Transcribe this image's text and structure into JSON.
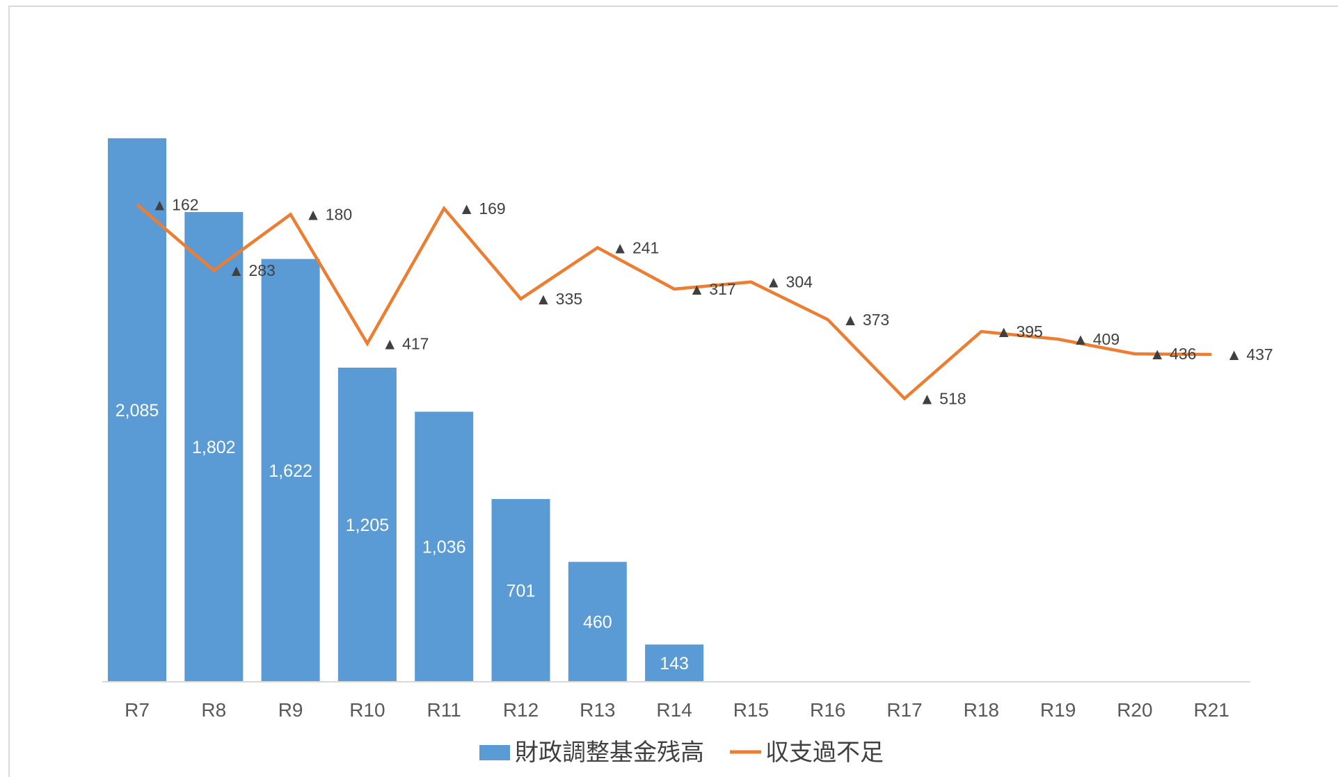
{
  "chart_data": {
    "type": "bar",
    "categories": [
      "R7",
      "R8",
      "R9",
      "R10",
      "R11",
      "R12",
      "R13",
      "R14",
      "R15",
      "R16",
      "R17",
      "R18",
      "R19",
      "R20",
      "R21"
    ],
    "series": [
      {
        "name": "財政調整基金残高",
        "type": "bar",
        "values": [
          2085,
          1802,
          1622,
          1205,
          1036,
          701,
          460,
          143,
          null,
          null,
          null,
          null,
          null,
          null,
          null
        ],
        "labels": [
          "2,085",
          "1,802",
          "1,622",
          "1,205",
          "1,036",
          "701",
          "460",
          "143",
          "",
          "",
          "",
          "",
          "",
          "",
          ""
        ],
        "color": "#5b9bd5"
      },
      {
        "name": "収支過不足",
        "type": "line",
        "values": [
          -162,
          -283,
          -180,
          -417,
          -169,
          -335,
          -241,
          -317,
          -304,
          -373,
          -518,
          -395,
          -409,
          -436,
          -437
        ],
        "labels": [
          "▲ 162",
          "▲ 283",
          "▲ 180",
          "▲ 417",
          "▲ 169",
          "▲ 335",
          "▲ 241",
          "▲ 317",
          "▲ 304",
          "▲ 373",
          "▲ 518",
          "▲ 395",
          "▲ 409",
          "▲ 436",
          "▲ 437"
        ],
        "color": "#ed7d31"
      }
    ],
    "legend": "bottom",
    "grid": false
  }
}
